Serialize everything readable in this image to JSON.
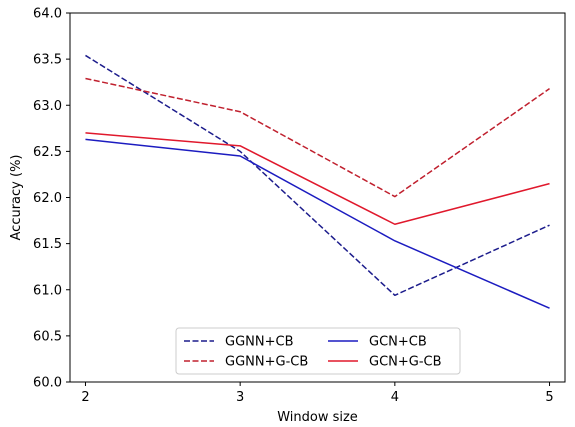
{
  "chart_data": {
    "type": "line",
    "xlabel": "Window size",
    "ylabel": "Accuracy (%)",
    "x": [
      2,
      3,
      4,
      5
    ],
    "xlim": [
      1.9,
      5.1
    ],
    "ylim": [
      60.0,
      64.0
    ],
    "x_ticks": [
      "2",
      "3",
      "4",
      "5"
    ],
    "y_ticks": [
      "60.0",
      "60.5",
      "61.0",
      "61.5",
      "62.0",
      "62.5",
      "63.0",
      "63.5",
      "64.0"
    ],
    "grid": false,
    "legend_position": "lower center",
    "series": [
      {
        "name": "GGNN+CB",
        "values": [
          63.54,
          62.5,
          60.94,
          61.7
        ],
        "color": "#1c1c8c",
        "line_style": "dashed"
      },
      {
        "name": "GGNN+G-CB",
        "values": [
          63.29,
          62.93,
          62.01,
          63.18
        ],
        "color": "#c0202e",
        "line_style": "dashed"
      },
      {
        "name": "GCN+CB",
        "values": [
          62.63,
          62.45,
          61.53,
          60.8
        ],
        "color": "#1c1cc0",
        "line_style": "solid"
      },
      {
        "name": "GCN+G-CB",
        "values": [
          62.7,
          62.56,
          61.71,
          62.15
        ],
        "color": "#e0182c",
        "line_style": "solid"
      }
    ]
  }
}
